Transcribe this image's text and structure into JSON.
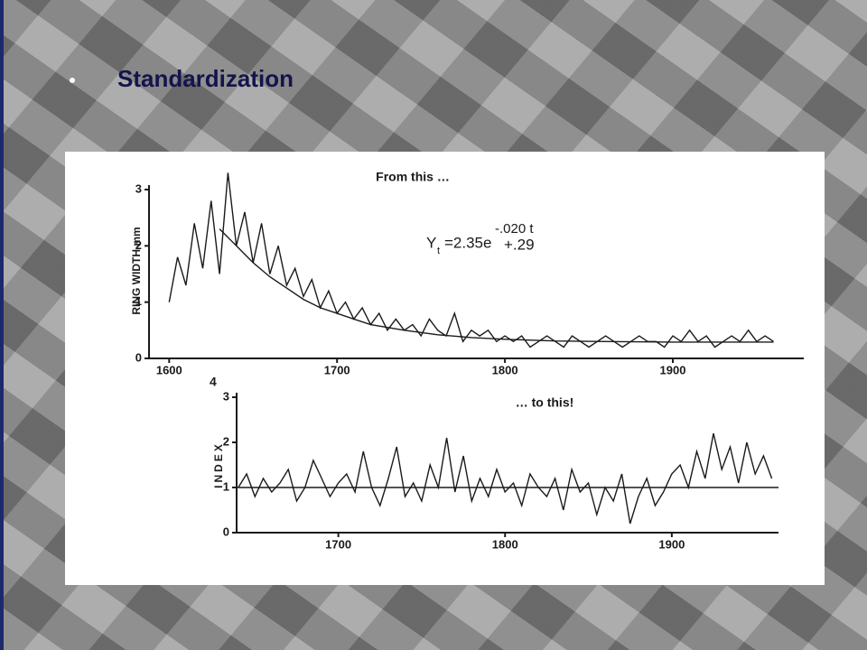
{
  "title": "Standardization",
  "figure_label": "4",
  "chart_data": [
    {
      "type": "line",
      "caption": "From this …",
      "ylabel": "RING WIDTH mm",
      "equation": {
        "base": "Y",
        "sub": "t",
        "main": "=2.35e",
        "exp": "-.020 t",
        "tail": "+.29"
      },
      "xlim": [
        1588,
        1978
      ],
      "ylim": [
        0,
        3
      ],
      "xticks": [
        1600,
        1700,
        1800,
        1900
      ],
      "yticks": [
        0,
        1,
        2,
        3
      ],
      "series": [
        {
          "color": "#1a1a1a",
          "x": [
            1600,
            1605,
            1610,
            1615,
            1620,
            1625,
            1630,
            1635,
            1640,
            1645,
            1650,
            1655,
            1660,
            1665,
            1670,
            1675,
            1680,
            1685,
            1690,
            1695,
            1700,
            1705,
            1710,
            1715,
            1720,
            1725,
            1730,
            1735,
            1740,
            1745,
            1750,
            1755,
            1760,
            1765,
            1770,
            1775,
            1780,
            1785,
            1790,
            1795,
            1800,
            1805,
            1810,
            1815,
            1820,
            1825,
            1830,
            1835,
            1840,
            1845,
            1850,
            1855,
            1860,
            1865,
            1870,
            1875,
            1880,
            1885,
            1890,
            1895,
            1900,
            1905,
            1910,
            1915,
            1920,
            1925,
            1930,
            1935,
            1940,
            1945,
            1950,
            1955,
            1960
          ],
          "values": [
            1.0,
            1.8,
            1.3,
            2.4,
            1.6,
            2.8,
            1.5,
            3.3,
            2.0,
            2.6,
            1.7,
            2.4,
            1.5,
            2.0,
            1.3,
            1.6,
            1.1,
            1.4,
            0.9,
            1.2,
            0.8,
            1.0,
            0.7,
            0.9,
            0.6,
            0.8,
            0.5,
            0.7,
            0.5,
            0.6,
            0.4,
            0.7,
            0.5,
            0.4,
            0.8,
            0.3,
            0.5,
            0.4,
            0.5,
            0.3,
            0.4,
            0.3,
            0.4,
            0.2,
            0.3,
            0.4,
            0.3,
            0.2,
            0.4,
            0.3,
            0.2,
            0.3,
            0.4,
            0.3,
            0.2,
            0.3,
            0.4,
            0.3,
            0.3,
            0.2,
            0.4,
            0.3,
            0.5,
            0.3,
            0.4,
            0.2,
            0.3,
            0.4,
            0.3,
            0.5,
            0.3,
            0.4,
            0.3
          ]
        },
        {
          "color": "#1a1a1a",
          "x": [
            1630,
            1640,
            1650,
            1660,
            1670,
            1680,
            1690,
            1700,
            1710,
            1720,
            1740,
            1760,
            1780,
            1800,
            1830,
            1860,
            1900,
            1960
          ],
          "values": [
            2.3,
            2.0,
            1.7,
            1.45,
            1.25,
            1.05,
            0.9,
            0.8,
            0.7,
            0.6,
            0.5,
            0.42,
            0.37,
            0.34,
            0.31,
            0.3,
            0.29,
            0.29
          ]
        }
      ]
    },
    {
      "type": "line",
      "caption": "… to this!",
      "ylabel": "INDEX",
      "refline": 1,
      "xlim": [
        1639,
        1964
      ],
      "ylim": [
        0,
        3
      ],
      "xticks": [
        1700,
        1800,
        1900
      ],
      "yticks": [
        0,
        1,
        2,
        3
      ],
      "series": [
        {
          "color": "#1a1a1a",
          "x": [
            1640,
            1645,
            1650,
            1655,
            1660,
            1665,
            1670,
            1675,
            1680,
            1685,
            1690,
            1695,
            1700,
            1705,
            1710,
            1715,
            1720,
            1725,
            1730,
            1735,
            1740,
            1745,
            1750,
            1755,
            1760,
            1765,
            1770,
            1775,
            1780,
            1785,
            1790,
            1795,
            1800,
            1805,
            1810,
            1815,
            1820,
            1825,
            1830,
            1835,
            1840,
            1845,
            1850,
            1855,
            1860,
            1865,
            1870,
            1875,
            1880,
            1885,
            1890,
            1895,
            1900,
            1905,
            1910,
            1915,
            1920,
            1925,
            1930,
            1935,
            1940,
            1945,
            1950,
            1955,
            1960
          ],
          "values": [
            1.0,
            1.3,
            0.8,
            1.2,
            0.9,
            1.1,
            1.4,
            0.7,
            1.0,
            1.6,
            1.2,
            0.8,
            1.1,
            1.3,
            0.9,
            1.8,
            1.0,
            0.6,
            1.2,
            1.9,
            0.8,
            1.1,
            0.7,
            1.5,
            1.0,
            2.1,
            0.9,
            1.7,
            0.7,
            1.2,
            0.8,
            1.4,
            0.9,
            1.1,
            0.6,
            1.3,
            1.0,
            0.8,
            1.2,
            0.5,
            1.4,
            0.9,
            1.1,
            0.4,
            1.0,
            0.7,
            1.3,
            0.2,
            0.8,
            1.2,
            0.6,
            0.9,
            1.3,
            1.5,
            1.0,
            1.8,
            1.2,
            2.2,
            1.4,
            1.9,
            1.1,
            2.0,
            1.3,
            1.7,
            1.2
          ]
        }
      ]
    }
  ]
}
